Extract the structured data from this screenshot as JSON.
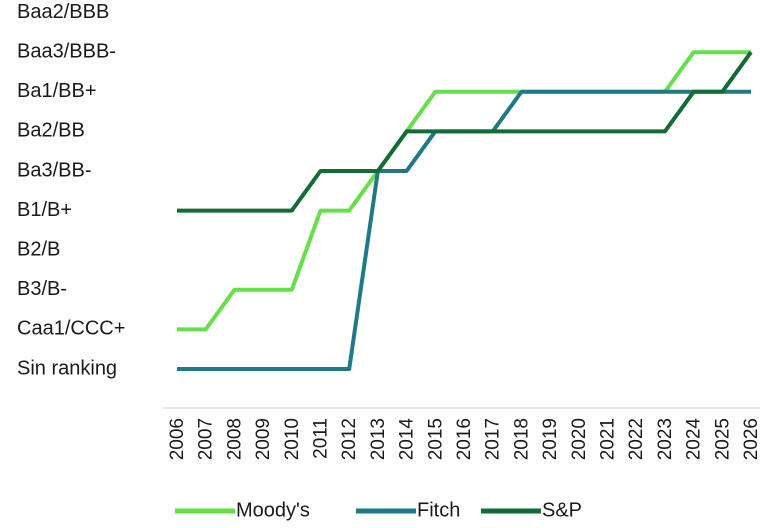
{
  "chart_data": {
    "type": "line",
    "title": "",
    "xlabel": "",
    "ylabel": "",
    "grid": false,
    "legend_position": "bottom",
    "y_categories": [
      "Sin ranking",
      "Caa1/CCC+",
      "B3/B-",
      "B2/B",
      "B1/B+",
      "Ba3/BB-",
      "Ba2/BB",
      "Ba1/BB+",
      "Baa3/BBB-",
      "Baa2/BBB"
    ],
    "x": [
      "2006",
      "2007",
      "2008",
      "2009",
      "2010",
      "2011",
      "2012",
      "2013",
      "2014",
      "2015",
      "2016",
      "2017",
      "2018",
      "2019",
      "2020",
      "2021",
      "2022",
      "2023",
      "2024",
      "2025",
      "2026"
    ],
    "series": [
      {
        "name": "Moody's",
        "color": "#66e04a",
        "values": [
          "Caa1/CCC+",
          "Caa1/CCC+",
          "B3/B-",
          "B3/B-",
          "B3/B-",
          "B1/B+",
          "B1/B+",
          "Ba3/BB-",
          "Ba2/BB",
          "Ba1/BB+",
          "Ba1/BB+",
          "Ba1/BB+",
          "Ba1/BB+",
          "Ba1/BB+",
          "Ba1/BB+",
          "Ba1/BB+",
          "Ba1/BB+",
          "Ba1/BB+",
          "Baa3/BBB-",
          "Baa3/BBB-",
          "Baa3/BBB-"
        ]
      },
      {
        "name": "Fitch",
        "color": "#1f7a86",
        "values": [
          "Sin ranking",
          "Sin ranking",
          "Sin ranking",
          "Sin ranking",
          "Sin ranking",
          "Sin ranking",
          "Sin ranking",
          "Ba3/BB-",
          "Ba3/BB-",
          "Ba2/BB",
          "Ba2/BB",
          "Ba2/BB",
          "Ba1/BB+",
          "Ba1/BB+",
          "Ba1/BB+",
          "Ba1/BB+",
          "Ba1/BB+",
          "Ba1/BB+",
          "Ba1/BB+",
          "Ba1/BB+",
          "Ba1/BB+"
        ]
      },
      {
        "name": "S&P",
        "color": "#136b35",
        "values": [
          "B1/B+",
          "B1/B+",
          "B1/B+",
          "B1/B+",
          "B1/B+",
          "Ba3/BB-",
          "Ba3/BB-",
          "Ba3/BB-",
          "Ba2/BB",
          "Ba2/BB",
          "Ba2/BB",
          "Ba2/BB",
          "Ba2/BB",
          "Ba2/BB",
          "Ba2/BB",
          "Ba2/BB",
          "Ba2/BB",
          "Ba2/BB",
          "Ba1/BB+",
          "Ba1/BB+",
          "Baa3/BBB-"
        ]
      }
    ]
  }
}
